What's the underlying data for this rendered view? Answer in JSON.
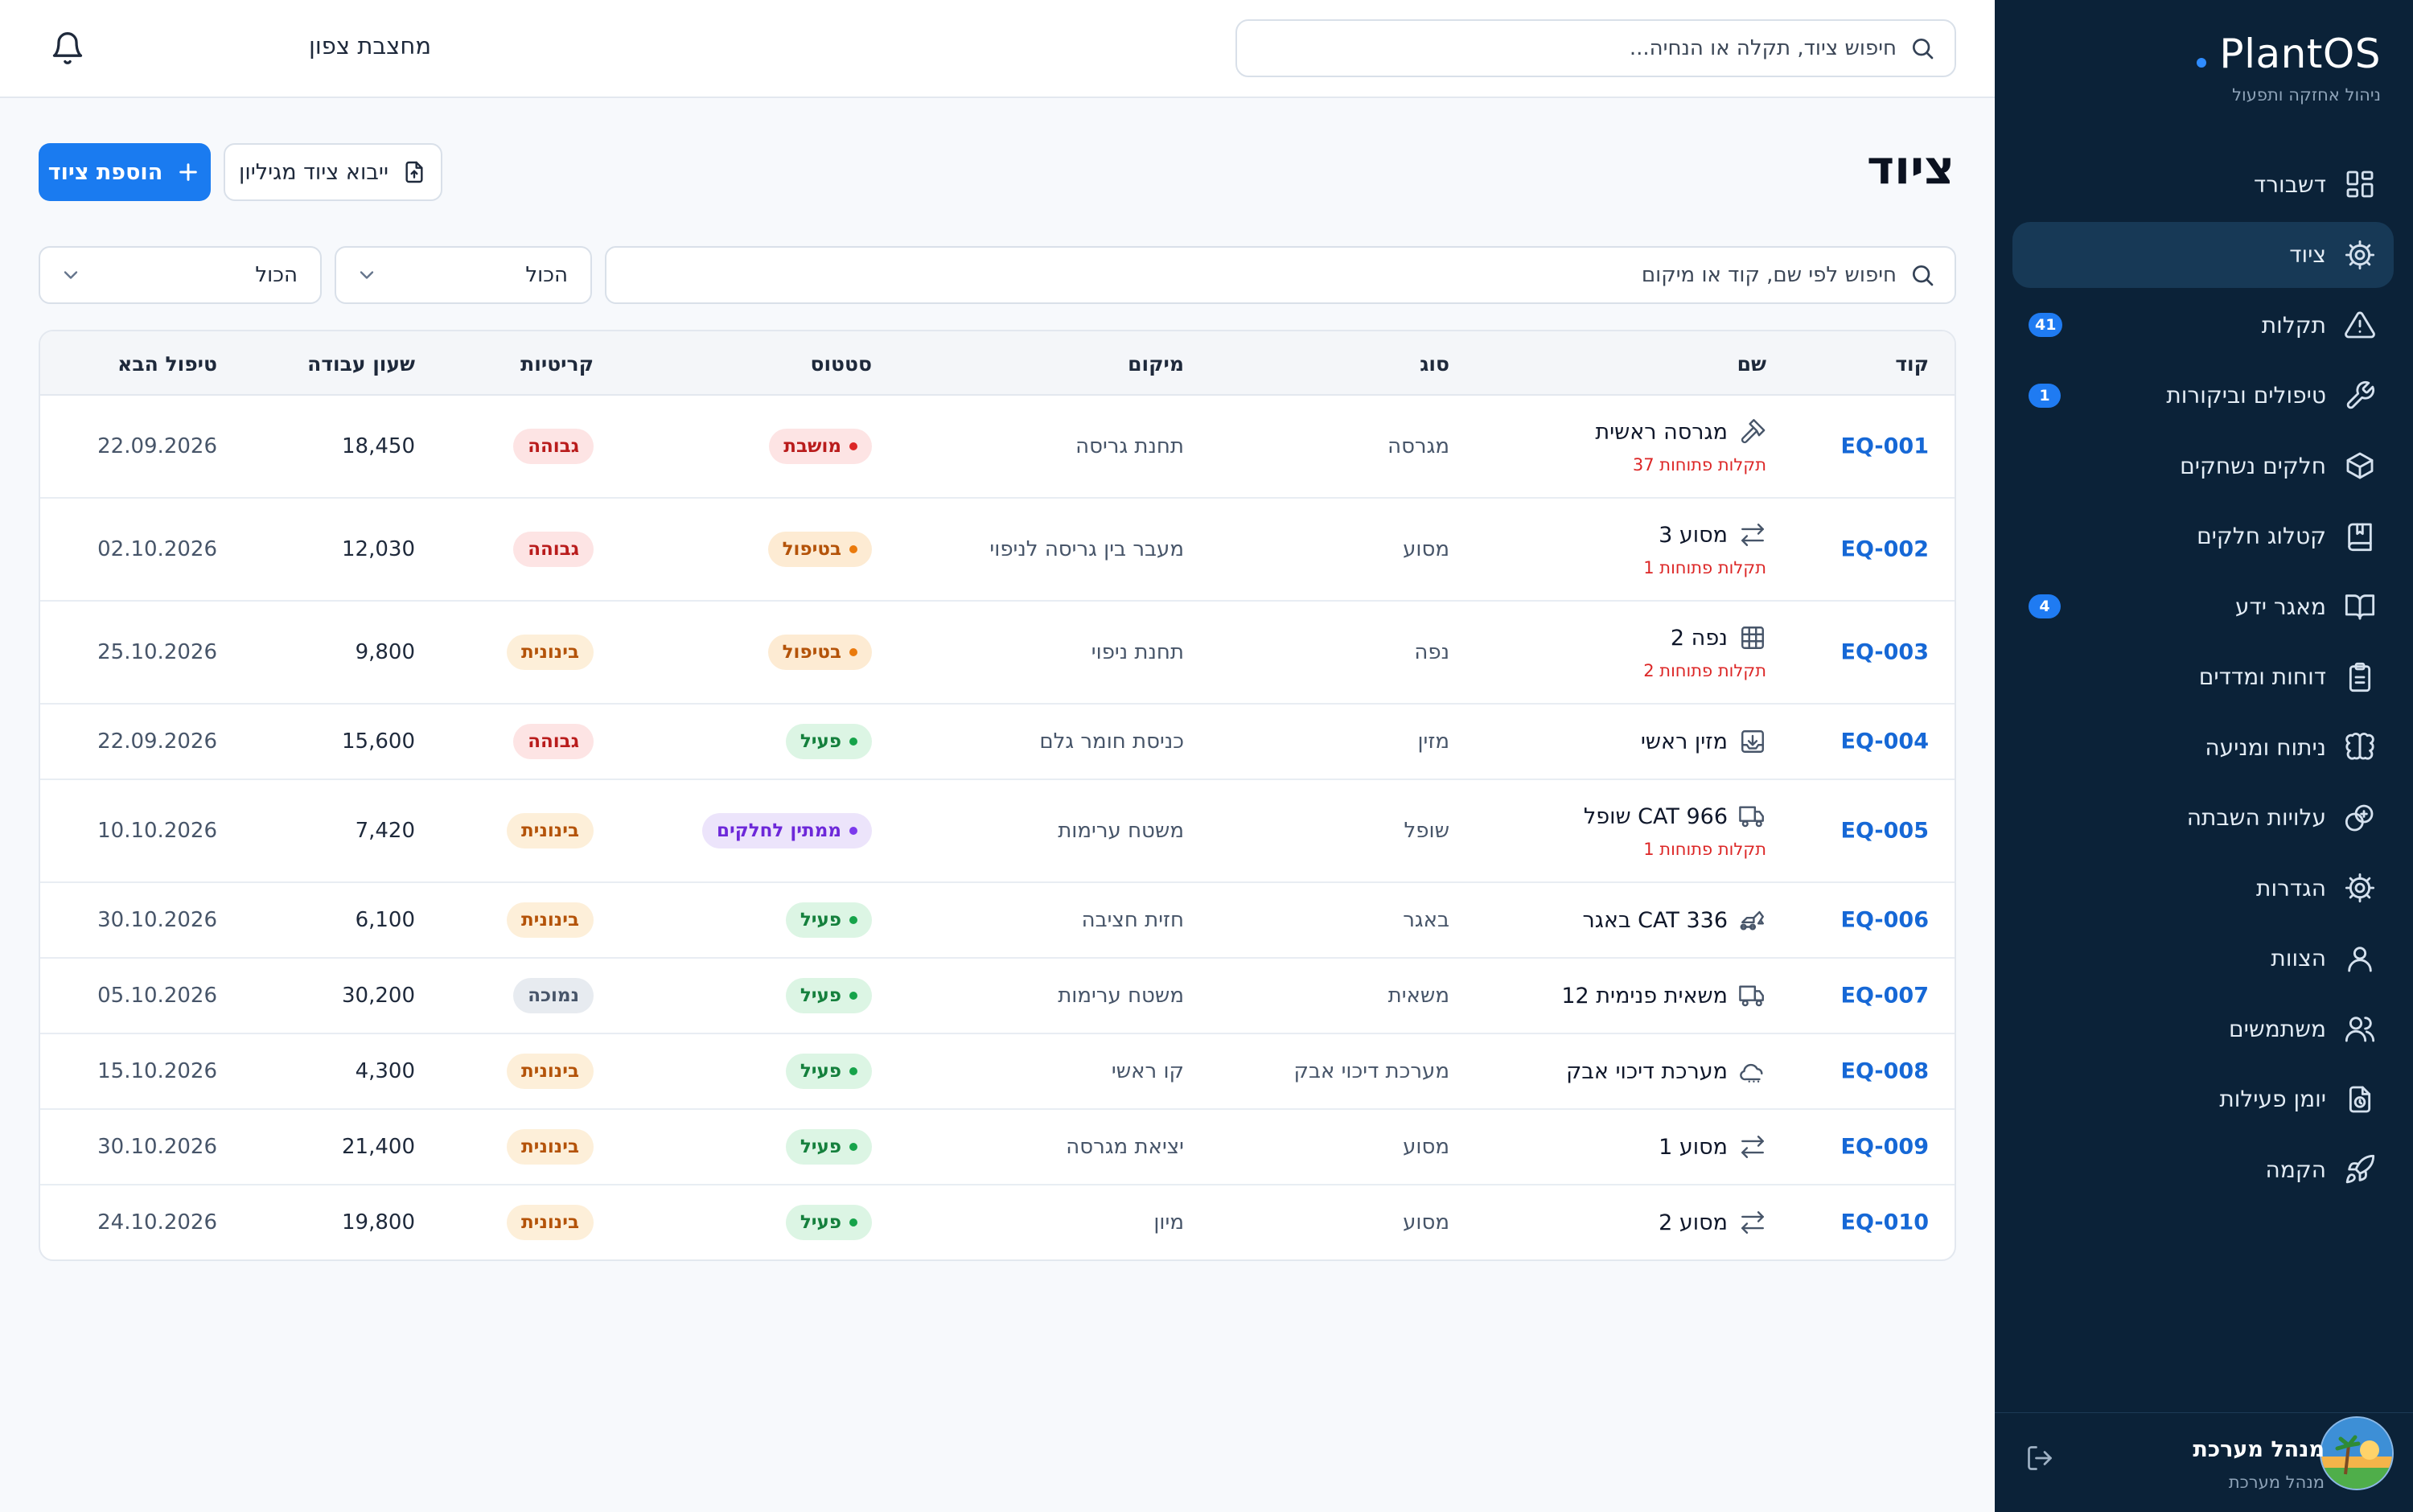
{
  "sidebar": {
    "brand": "PlantOS",
    "tagline": "ניהול אחזקה ותפעול",
    "items": [
      {
        "label": "דשבורד",
        "icon": "dashboard-icon",
        "badge": ""
      },
      {
        "label": "ציוד",
        "icon": "gear-icon",
        "badge": "",
        "active": true
      },
      {
        "label": "תקלות",
        "icon": "warning-icon",
        "badge": "41"
      },
      {
        "label": "טיפולים וביקורות",
        "icon": "wrench-icon",
        "badge": "1"
      },
      {
        "label": "חלקים נשחקים",
        "icon": "box-icon",
        "badge": ""
      },
      {
        "label": "קטלוג חלקים",
        "icon": "book-bookmark-icon",
        "badge": ""
      },
      {
        "label": "מאגר ידע",
        "icon": "open-book-icon",
        "badge": "4"
      },
      {
        "label": "דוחות ומדדים",
        "icon": "clipboard-icon",
        "badge": ""
      },
      {
        "label": "ניתוח ומניעה",
        "icon": "brain-icon",
        "badge": ""
      },
      {
        "label": "עלויות השבתה",
        "icon": "cost-icon",
        "badge": ""
      },
      {
        "label": "הגדרות",
        "icon": "settings-icon",
        "badge": ""
      },
      {
        "label": "הצוות",
        "icon": "user-icon",
        "badge": ""
      },
      {
        "label": "משתמשים",
        "icon": "users-icon",
        "badge": ""
      },
      {
        "label": "יומן פעילות",
        "icon": "activity-log-icon",
        "badge": ""
      },
      {
        "label": "הקמה",
        "icon": "rocket-icon",
        "badge": ""
      }
    ],
    "user": {
      "name": "מנהל מערכת",
      "role": "מנהל מערכת"
    }
  },
  "topbar": {
    "plant": "מחצבת צפון",
    "search_placeholder": "חיפוש ציוד, תקלה או הנחיה..."
  },
  "page": {
    "title": "ציוד",
    "add_button": "הוספת ציוד",
    "import_button": "ייבוא ציוד מגיליון",
    "search_placeholder": "חיפוש לפי שם, קוד או מיקום",
    "status_filter": "הכול",
    "criticality_filter": "הכול"
  },
  "table": {
    "headers": {
      "code": "קוד",
      "name": "שם",
      "type": "סוג",
      "location": "מיקום",
      "status": "סטטוס",
      "criticality": "קריטיות",
      "hours": "שעון עבודה",
      "next": "טיפול הבא"
    },
    "rows": [
      {
        "code": "EQ-001",
        "name": "מגרסה ראשית",
        "icon": "hammer-icon",
        "faults": "37 תקלות פתוחות",
        "type": "מגרסה",
        "location": "תחנת גריסה",
        "status": "מושבת",
        "status_kind": "down",
        "criticality": "גבוהה",
        "crit_kind": "high",
        "hours": "18,450",
        "next": "22.09.2026"
      },
      {
        "code": "EQ-002",
        "name": "מסוע 3",
        "icon": "arrows-icon",
        "faults": "1 תקלות פתוחות",
        "type": "מסוע",
        "location": "מעבר בין גריסה לניפוי",
        "status": "בטיפול",
        "status_kind": "maint",
        "criticality": "גבוהה",
        "crit_kind": "high",
        "hours": "12,030",
        "next": "02.10.2026"
      },
      {
        "code": "EQ-003",
        "name": "נפה 2",
        "icon": "grid-icon",
        "faults": "2 תקלות פתוחות",
        "type": "נפה",
        "location": "תחנת ניפוי",
        "status": "בטיפול",
        "status_kind": "maint",
        "criticality": "בינונית",
        "crit_kind": "medium",
        "hours": "9,800",
        "next": "25.10.2026"
      },
      {
        "code": "EQ-004",
        "name": "מזין ראשי",
        "icon": "feeder-icon",
        "faults": "",
        "type": "מזין",
        "location": "כניסת חומר גלם",
        "status": "פעיל",
        "status_kind": "active",
        "criticality": "גבוהה",
        "crit_kind": "high",
        "hours": "15,600",
        "next": "22.09.2026"
      },
      {
        "code": "EQ-005",
        "name": "שופל CAT 966",
        "icon": "truck-icon",
        "faults": "1 תקלות פתוחות",
        "type": "שופל",
        "location": "משטח ערימות",
        "status": "ממתין לחלקים",
        "status_kind": "waiting",
        "criticality": "בינונית",
        "crit_kind": "medium",
        "hours": "7,420",
        "next": "10.10.2026"
      },
      {
        "code": "EQ-006",
        "name": "באגר CAT 336",
        "icon": "excavator-icon",
        "faults": "",
        "type": "באגר",
        "location": "חזית חציבה",
        "status": "פעיל",
        "status_kind": "active",
        "criticality": "בינונית",
        "crit_kind": "medium",
        "hours": "6,100",
        "next": "30.10.2026"
      },
      {
        "code": "EQ-007",
        "name": "משאית פנימית 12",
        "icon": "truck-icon",
        "faults": "",
        "type": "משאית",
        "location": "משטח ערימות",
        "status": "פעיל",
        "status_kind": "active",
        "criticality": "נמוכה",
        "crit_kind": "low",
        "hours": "30,200",
        "next": "05.10.2026"
      },
      {
        "code": "EQ-008",
        "name": "מערכת דיכוי אבק",
        "icon": "dust-cloud-icon",
        "faults": "",
        "type": "מערכת דיכוי אבק",
        "location": "קו ראשי",
        "status": "פעיל",
        "status_kind": "active",
        "criticality": "בינונית",
        "crit_kind": "medium",
        "hours": "4,300",
        "next": "15.10.2026"
      },
      {
        "code": "EQ-009",
        "name": "מסוע 1",
        "icon": "arrows-icon",
        "faults": "",
        "type": "מסוע",
        "location": "יציאת מגרסה",
        "status": "פעיל",
        "status_kind": "active",
        "criticality": "בינונית",
        "crit_kind": "medium",
        "hours": "21,400",
        "next": "30.10.2026"
      },
      {
        "code": "EQ-010",
        "name": "מסוע 2",
        "icon": "arrows-icon",
        "faults": "",
        "type": "מסוע",
        "location": "מיון",
        "status": "פעיל",
        "status_kind": "active",
        "criticality": "בינונית",
        "crit_kind": "medium",
        "hours": "19,800",
        "next": "24.10.2026"
      }
    ]
  },
  "colors": {
    "sidebar_bg": "#0b2238",
    "sidebar_active": "#173956",
    "accent": "#1a7bf0",
    "code_link": "#1668d6",
    "fault_text": "#dc2626"
  }
}
